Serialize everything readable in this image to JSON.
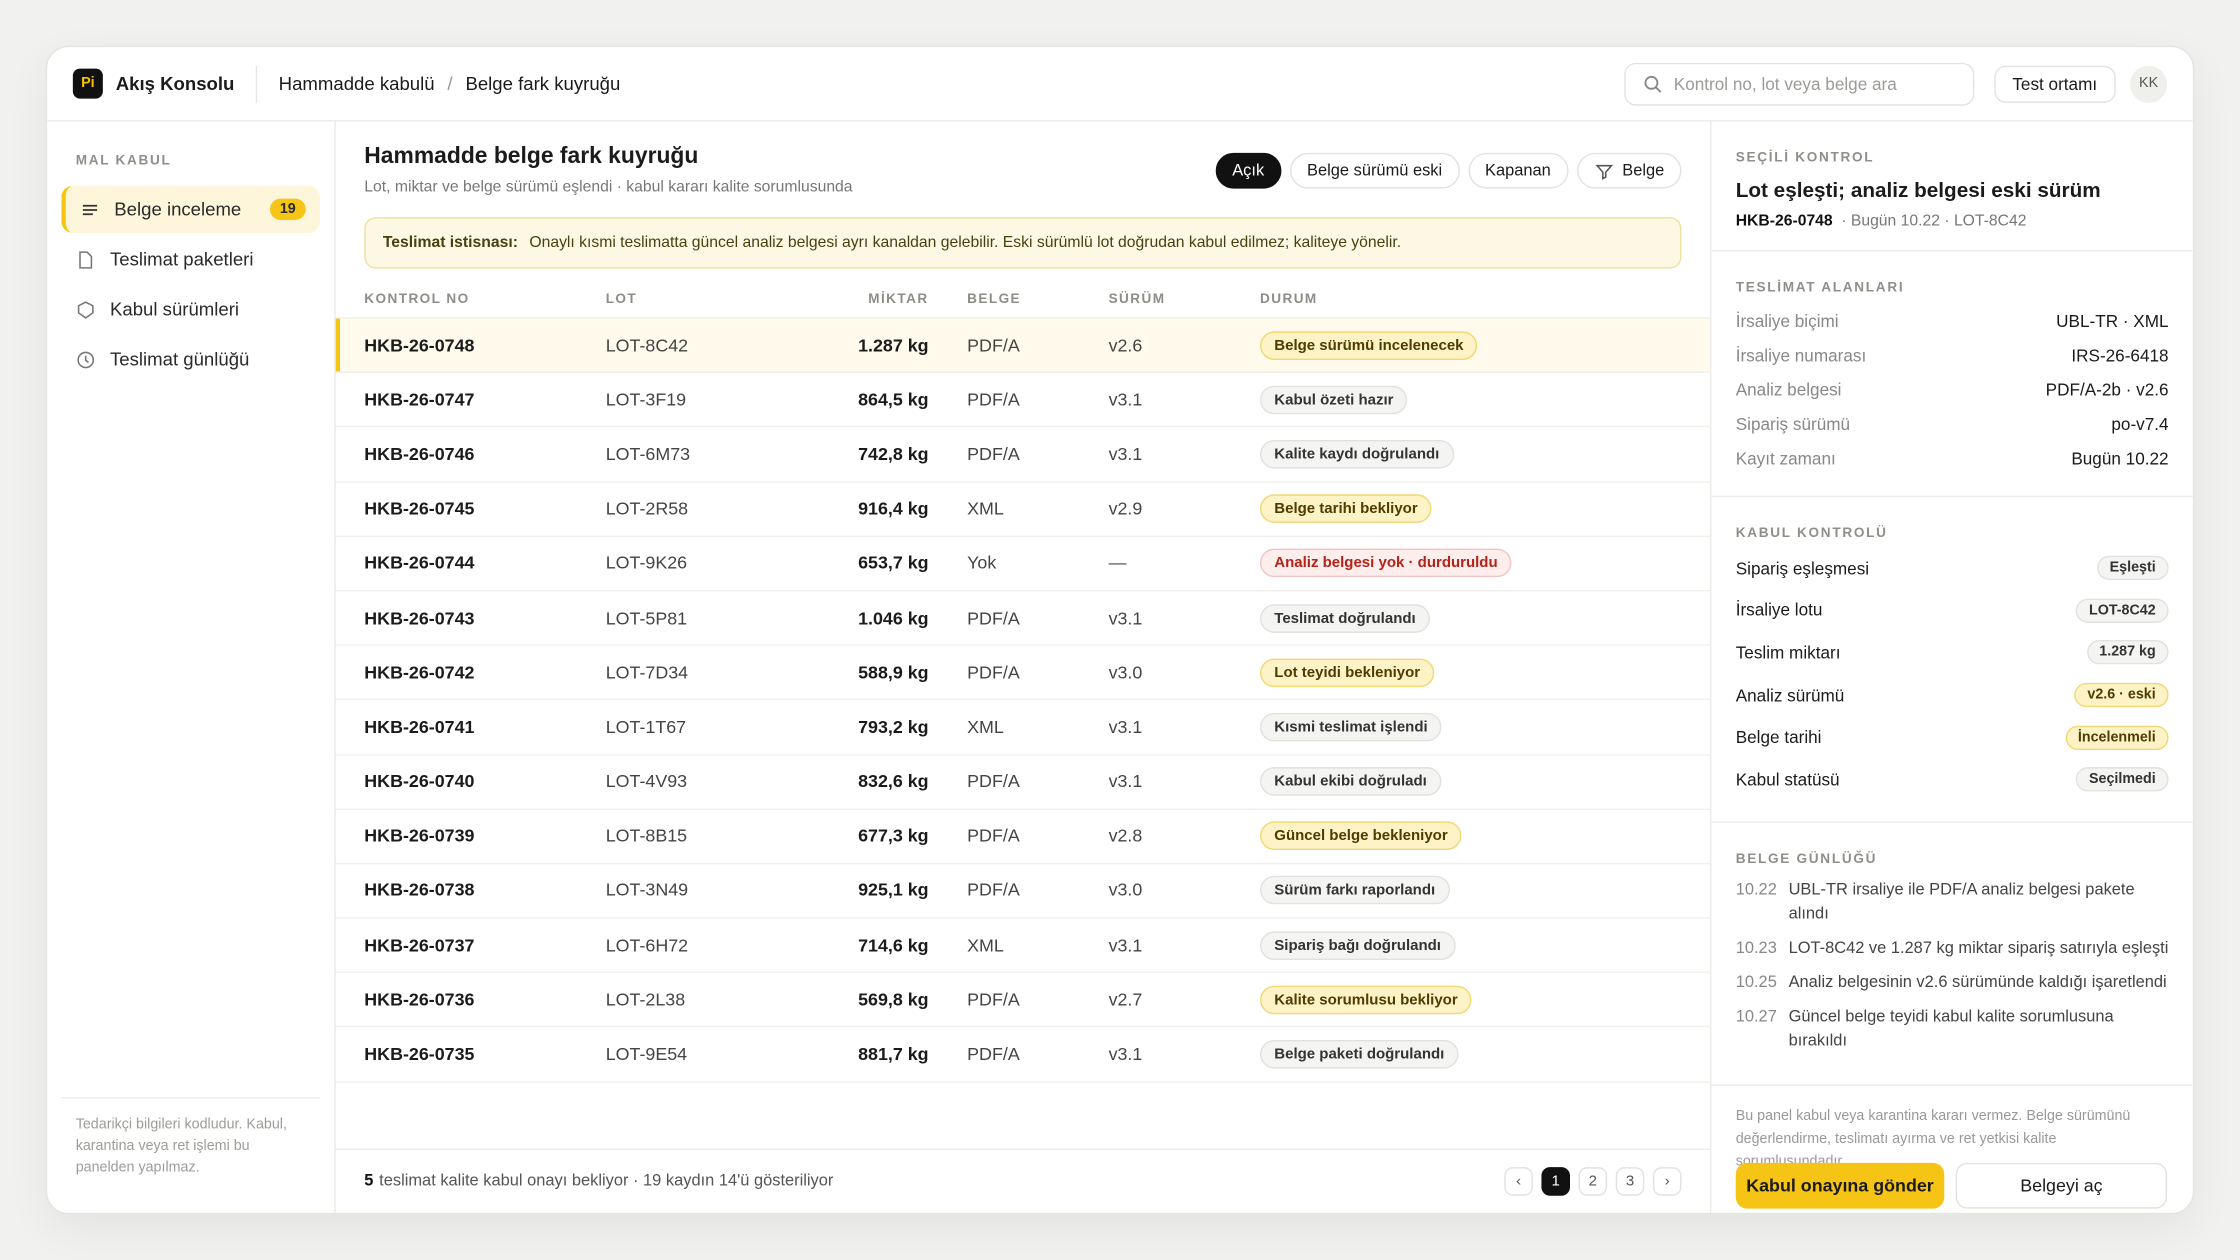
{
  "app": {
    "logo": "Pi",
    "name": "Akış Konsolu"
  },
  "breadcrumb": {
    "items": [
      "Hammadde kabulü",
      "Belge fark kuyruğu"
    ],
    "separator": "/"
  },
  "topbar": {
    "search_placeholder": "Kontrol no, lot veya belge ara",
    "env_button": "Test ortamı",
    "avatar": "KK"
  },
  "sidebar": {
    "section": "MAL KABUL",
    "items": [
      {
        "label": "Belge inceleme",
        "badge": "19"
      },
      {
        "label": "Teslimat paketleri"
      },
      {
        "label": "Kabul sürümleri"
      },
      {
        "label": "Teslimat günlüğü"
      }
    ],
    "active": 0,
    "note": "Tedarikçi bilgileri kodludur. Kabul, karantina veya ret işlemi bu panelden yapılmaz."
  },
  "main": {
    "title": "Hammadde belge fark kuyruğu",
    "subtitle": "Lot, miktar ve belge sürümü eşlendi · kabul kararı kalite sorumlusunda",
    "filters": [
      "Açık",
      "Belge sürümü eski",
      "Kapanan",
      "Belge"
    ],
    "active_filter": 0,
    "notice": {
      "label": "Teslimat istisnası:",
      "text": "Onaylı kısmi teslimatta güncel analiz belgesi ayrı kanaldan gelebilir. Eski sürümlü lot doğrudan kabul edilmez; kaliteye yönelir."
    },
    "columns": [
      "KONTROL NO",
      "LOT",
      "MİKTAR",
      "BELGE",
      "SÜRÜM",
      "DURUM"
    ],
    "selected_row": 0,
    "rows": [
      [
        "HKB-26-0748",
        "LOT-8C42",
        "1.287 kg",
        "PDF/A",
        "v2.6",
        "Belge sürümü incelenecek",
        "yellow"
      ],
      [
        "HKB-26-0747",
        "LOT-3F19",
        "864,5 kg",
        "PDF/A",
        "v3.1",
        "Kabul özeti hazır",
        "gray"
      ],
      [
        "HKB-26-0746",
        "LOT-6M73",
        "742,8 kg",
        "PDF/A",
        "v3.1",
        "Kalite kaydı doğrulandı",
        "gray"
      ],
      [
        "HKB-26-0745",
        "LOT-2R58",
        "916,4 kg",
        "XML",
        "v2.9",
        "Belge tarihi bekliyor",
        "yellow"
      ],
      [
        "HKB-26-0744",
        "LOT-9K26",
        "653,7 kg",
        "Yok",
        "—",
        "Analiz belgesi yok · durduruldu",
        "red"
      ],
      [
        "HKB-26-0743",
        "LOT-5P81",
        "1.046 kg",
        "PDF/A",
        "v3.1",
        "Teslimat doğrulandı",
        "gray"
      ],
      [
        "HKB-26-0742",
        "LOT-7D34",
        "588,9 kg",
        "PDF/A",
        "v3.0",
        "Lot teyidi bekleniyor",
        "yellow"
      ],
      [
        "HKB-26-0741",
        "LOT-1T67",
        "793,2 kg",
        "XML",
        "v3.1",
        "Kısmi teslimat işlendi",
        "gray"
      ],
      [
        "HKB-26-0740",
        "LOT-4V93",
        "832,6 kg",
        "PDF/A",
        "v3.1",
        "Kabul ekibi doğruladı",
        "gray"
      ],
      [
        "HKB-26-0739",
        "LOT-8B15",
        "677,3 kg",
        "PDF/A",
        "v2.8",
        "Güncel belge bekleniyor",
        "yellow"
      ],
      [
        "HKB-26-0738",
        "LOT-3N49",
        "925,1 kg",
        "PDF/A",
        "v3.0",
        "Sürüm farkı raporlandı",
        "gray"
      ],
      [
        "HKB-26-0737",
        "LOT-6H72",
        "714,6 kg",
        "XML",
        "v3.1",
        "Sipariş bağı doğrulandı",
        "gray"
      ],
      [
        "HKB-26-0736",
        "LOT-2L38",
        "569,8 kg",
        "PDF/A",
        "v2.7",
        "Kalite sorumlusu bekliyor",
        "yellow"
      ],
      [
        "HKB-26-0735",
        "LOT-9E54",
        "881,7 kg",
        "PDF/A",
        "v3.1",
        "Belge paketi doğrulandı",
        "gray"
      ]
    ],
    "footer": {
      "count": "5",
      "text": "teslimat kalite kabul onayı bekliyor · 19 kaydın 14'ü gösteriliyor"
    },
    "pagination": {
      "prev": "‹",
      "pages": [
        "1",
        "2",
        "3"
      ],
      "next": "›",
      "current": 0
    }
  },
  "panel": {
    "section": "SEÇİLİ KONTROL",
    "title": "Lot eşleşti; analiz belgesi eski sürüm",
    "id": "HKB-26-0748",
    "meta": "· Bugün 10.22 · LOT-8C42",
    "fields_title": "TESLİMAT ALANLARI",
    "fields": [
      [
        "İrsaliye biçimi",
        "UBL-TR · XML"
      ],
      [
        "İrsaliye numarası",
        "IRS-26-6418"
      ],
      [
        "Analiz belgesi",
        "PDF/A-2b · v2.6"
      ],
      [
        "Sipariş sürümü",
        "po-v7.4"
      ],
      [
        "Kayıt zamanı",
        "Bugün 10.22"
      ]
    ],
    "checks_title": "KABUL KONTROLÜ",
    "checks": [
      [
        "Sipariş eşleşmesi",
        "Eşleşti",
        "gray"
      ],
      [
        "İrsaliye lotu",
        "LOT-8C42",
        "gray"
      ],
      [
        "Teslim miktarı",
        "1.287 kg",
        "gray"
      ],
      [
        "Analiz sürümü",
        "v2.6 · eski",
        "yellow"
      ],
      [
        "Belge tarihi",
        "İncelenmeli",
        "yellow"
      ],
      [
        "Kabul statüsü",
        "Seçilmedi",
        "gray"
      ]
    ],
    "log_title": "BELGE GÜNLÜĞÜ",
    "log": [
      [
        "10.22",
        "UBL-TR irsaliye ile PDF/A analiz belgesi pakete alındı"
      ],
      [
        "10.23",
        "LOT-8C42 ve 1.287 kg miktar sipariş satırıyla eşleşti"
      ],
      [
        "10.25",
        "Analiz belgesinin v2.6 sürümünde kaldığı işaretlendi"
      ],
      [
        "10.27",
        "Güncel belge teyidi kabul kalite sorumlusuna bırakıldı"
      ]
    ],
    "note": "Bu panel kabul veya karantina kararı vermez. Belge sürümünü değerlendirme, teslimatı ayırma ve ret yetkisi kalite sorumlusundadır.",
    "primary_button": "Kabul onayına gönder",
    "secondary_button": "Belgeyi aç"
  }
}
